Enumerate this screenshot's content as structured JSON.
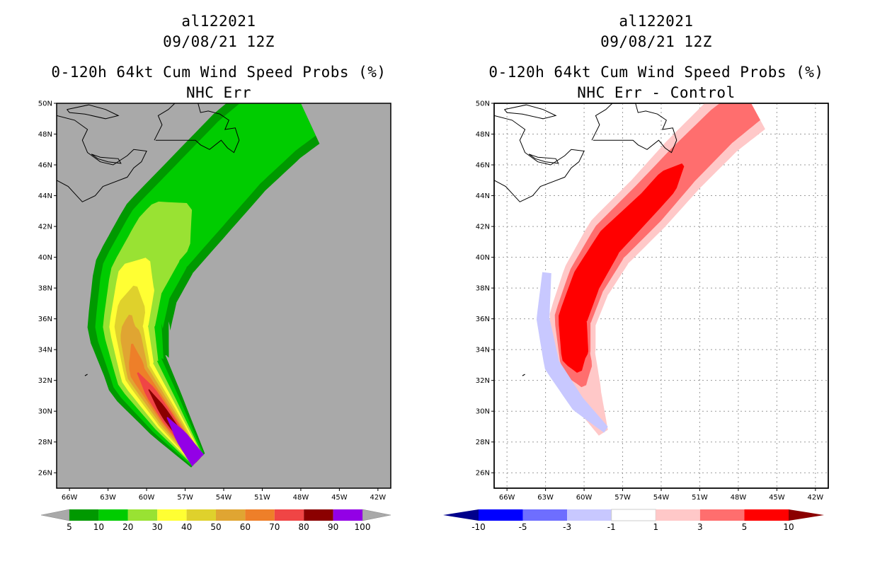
{
  "panels": [
    {
      "id": "left",
      "title_line1": "al122021",
      "title_line2": "09/08/21 12Z",
      "title_line3": "0-120h 64kt Cum Wind Speed Probs (%)",
      "title_line4": "NHC Err"
    },
    {
      "id": "right",
      "title_line1": "al122021",
      "title_line2": "09/08/21 12Z",
      "title_line3": "0-120h 64kt Cum Wind Speed Probs (%)",
      "title_line4": "NHC Err - Control"
    }
  ],
  "chart_data": [
    {
      "type": "heatmap",
      "title": "0-120h 64kt Cum Wind Speed Probs (%) NHC Err",
      "storm": "al122021",
      "time": "09/08/21 12Z",
      "xlim": [
        -67,
        -41
      ],
      "ylim": [
        25,
        50
      ],
      "xticks": [
        -66,
        -63,
        -60,
        -57,
        -54,
        -51,
        -48,
        -45,
        -42
      ],
      "xtick_labels": [
        "66W",
        "63W",
        "60W",
        "57W",
        "54W",
        "51W",
        "48W",
        "45W",
        "42W"
      ],
      "yticks": [
        26,
        28,
        30,
        32,
        34,
        36,
        38,
        40,
        42,
        44,
        46,
        48,
        50
      ],
      "ytick_labels": [
        "26N",
        "28N",
        "30N",
        "32N",
        "34N",
        "36N",
        "38N",
        "40N",
        "42N",
        "44N",
        "46N",
        "48N",
        "50N"
      ],
      "grid": false,
      "background_color": "#a9a9a9",
      "colorbar": {
        "labels": [
          "5",
          "10",
          "20",
          "30",
          "40",
          "50",
          "60",
          "70",
          "80",
          "90",
          "100"
        ],
        "colors": [
          "#009900",
          "#00cc00",
          "#99e233",
          "#ffff33",
          "#dfd12c",
          "#e0a532",
          "#ee7f29",
          "#f04545",
          "#8b0000",
          "#9300e6"
        ],
        "under_color": "#a9a9a9",
        "over_color": "#a9a9a9"
      },
      "track": [
        [
          -56.0,
          26.8
        ],
        [
          -58.4,
          29.6
        ],
        [
          -60.7,
          32.5
        ],
        [
          -61.4,
          35.5
        ],
        [
          -60.8,
          38.5
        ],
        [
          -59.0,
          41.2
        ],
        [
          -55.9,
          44.0
        ],
        [
          -52.8,
          46.8
        ],
        [
          -49.8,
          49.0
        ],
        [
          -48.0,
          50.0
        ]
      ],
      "contours": [
        {
          "level": 5,
          "halfwidths": [
            0.7,
            1.7,
            2.5,
            3.2,
            3.4,
            3.4,
            3.3,
            3.2,
            3.1,
            3.0
          ]
        },
        {
          "level": 10,
          "halfwidths": [
            0.6,
            1.45,
            2.1,
            2.6,
            2.8,
            2.8,
            2.7,
            2.6,
            2.5,
            2.4
          ]
        },
        {
          "level": 20,
          "halfwidths": [
            0.5,
            1.2,
            1.7,
            2.0,
            2.1,
            2.1,
            1.95
          ],
          "end_lat": 43.5
        },
        {
          "level": 30,
          "halfwidths": [
            0.45,
            1.0,
            1.35,
            1.5,
            1.5,
            1.4
          ],
          "end_lat": 40.0
        },
        {
          "level": 40,
          "halfwidths": [
            0.4,
            0.85,
            1.05,
            1.1,
            1.05
          ],
          "end_lat": 38.3
        },
        {
          "level": 50,
          "halfwidths": [
            0.35,
            0.7,
            0.85,
            0.8
          ],
          "end_lat": 36.5
        },
        {
          "level": 60,
          "halfwidths": [
            0.3,
            0.55,
            0.6,
            0.45
          ],
          "end_lat": 34.6
        },
        {
          "level": 70,
          "halfwidths": [
            0.25,
            0.45,
            0.4
          ],
          "end_lat": 32.5
        },
        {
          "level": 80,
          "halfwidths": [
            0.2,
            0.3,
            0.22
          ],
          "end_lat": 31.5
        },
        {
          "level": 90,
          "halfwidths": [
            0.6,
            0.35
          ],
          "end_lat": 29.8
        }
      ]
    },
    {
      "type": "heatmap",
      "title": "0-120h 64kt Cum Wind Speed Probs (%) NHC Err - Control",
      "storm": "al122021",
      "time": "09/08/21 12Z",
      "xlim": [
        -67,
        -41
      ],
      "ylim": [
        25,
        50
      ],
      "xticks": [
        -66,
        -63,
        -60,
        -57,
        -54,
        -51,
        -48,
        -45,
        -42
      ],
      "xtick_labels": [
        "66W",
        "63W",
        "60W",
        "57W",
        "54W",
        "51W",
        "48W",
        "45W",
        "42W"
      ],
      "yticks": [
        26,
        28,
        30,
        32,
        34,
        36,
        38,
        40,
        42,
        44,
        46,
        48,
        50
      ],
      "ytick_labels": [
        "26N",
        "28N",
        "30N",
        "32N",
        "34N",
        "36N",
        "38N",
        "40N",
        "42N",
        "44N",
        "46N",
        "48N",
        "50N"
      ],
      "grid": true,
      "background_color": "#ffffff",
      "colorbar": {
        "labels": [
          "-10",
          "-5",
          "-3",
          "-1",
          "1",
          "3",
          "5",
          "10"
        ],
        "colors": [
          "#0000ff",
          "#6e6eff",
          "#c8c8ff",
          "#ffffff",
          "#ffc8c8",
          "#ff6e6e",
          "#ff0000"
        ],
        "under_color": "#00008b",
        "over_color": "#8b0000"
      },
      "track": [
        [
          -58.5,
          28.6
        ],
        [
          -59.8,
          31.0
        ],
        [
          -60.7,
          33.5
        ],
        [
          -60.9,
          36.0
        ],
        [
          -59.8,
          38.5
        ],
        [
          -58.0,
          41.0
        ],
        [
          -55.0,
          43.5
        ],
        [
          -52.3,
          46.0
        ],
        [
          -49.3,
          48.5
        ],
        [
          -47.0,
          50.0
        ]
      ],
      "contours": [
        {
          "level": 1,
          "halfwidths": [
            0.4,
            1.2,
            1.6,
            1.8,
            1.9,
            2.0,
            2.0,
            2.0,
            2.0,
            2.0
          ]
        },
        {
          "level": 3,
          "halfwidths": [
            0.0,
            0.9,
            1.2,
            1.4,
            1.45,
            1.5,
            1.5,
            1.4,
            1.35,
            1.3
          ],
          "start_lat": 31.5
        },
        {
          "level": 5,
          "halfwidths": [
            0.6,
            0.95,
            1.05,
            1.1,
            1.1,
            1.0,
            0.85
          ],
          "start_lat": 32.5,
          "end_lat": 46.0
        }
      ],
      "negative_contours": [
        {
          "level": -1,
          "track": [
            [
              -58.3,
              28.8
            ],
            [
              -60.5,
              30.5
            ],
            [
              -62.5,
              33.0
            ],
            [
              -63.2,
              36.0
            ],
            [
              -62.9,
              39.0
            ]
          ],
          "halfwidths": [
            0.25,
            0.55,
            0.6,
            0.5,
            0.35
          ]
        }
      ]
    }
  ]
}
